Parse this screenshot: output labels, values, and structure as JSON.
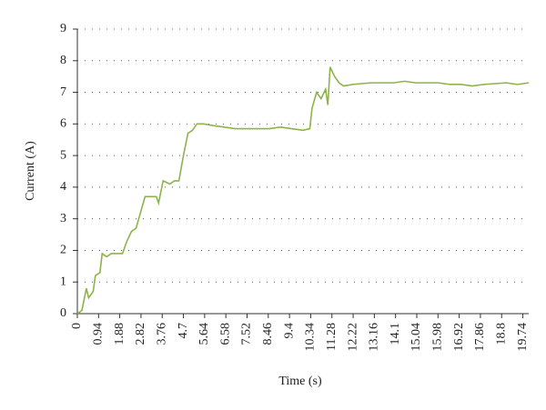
{
  "chart_data": {
    "type": "line",
    "xlabel": "Time (s)",
    "ylabel": "Current (A)",
    "series": [
      {
        "name": "Current",
        "color": "#8db34a",
        "x": [
          0,
          0.2,
          0.4,
          0.5,
          0.7,
          0.8,
          1.0,
          1.1,
          1.3,
          1.5,
          1.8,
          2.0,
          2.2,
          2.4,
          2.6,
          2.8,
          3.0,
          3.2,
          3.5,
          3.6,
          3.8,
          4.1,
          4.3,
          4.5,
          4.7,
          4.9,
          5.1,
          5.3,
          5.6,
          6.0,
          6.5,
          7.0,
          7.5,
          8.0,
          8.5,
          9.0,
          9.5,
          10.0,
          10.3,
          10.4,
          10.6,
          10.8,
          11.0,
          11.1,
          11.2,
          11.4,
          11.6,
          11.8,
          12.2,
          13.0,
          14.0,
          14.5,
          15.0,
          16.0,
          16.5,
          17.0,
          17.5,
          18.0,
          19.0,
          19.5,
          20.0
        ],
        "values": [
          0,
          0.1,
          0.8,
          0.5,
          0.7,
          1.2,
          1.3,
          1.9,
          1.8,
          1.9,
          1.9,
          1.9,
          2.3,
          2.6,
          2.7,
          3.2,
          3.7,
          3.7,
          3.7,
          3.5,
          4.2,
          4.1,
          4.2,
          4.2,
          5.0,
          5.7,
          5.8,
          6.0,
          6.0,
          5.95,
          5.9,
          5.85,
          5.85,
          5.85,
          5.85,
          5.9,
          5.85,
          5.8,
          5.85,
          6.5,
          7.0,
          6.8,
          7.1,
          6.6,
          7.8,
          7.5,
          7.3,
          7.2,
          7.25,
          7.3,
          7.3,
          7.35,
          7.3,
          7.3,
          7.25,
          7.25,
          7.2,
          7.25,
          7.3,
          7.25,
          7.3
        ]
      }
    ],
    "xlim": [
      0,
      20
    ],
    "xticks": [
      0,
      0.94,
      1.88,
      2.82,
      3.76,
      4.7,
      5.64,
      6.58,
      7.52,
      8.46,
      9.4,
      10.34,
      11.28,
      12.22,
      13.16,
      14.1,
      15.04,
      15.98,
      16.92,
      17.86,
      18.8,
      19.74
    ],
    "ylim": [
      0,
      9
    ],
    "yticks": [
      0,
      1,
      2,
      3,
      4,
      5,
      6,
      7,
      8,
      9
    ],
    "grid": true
  }
}
